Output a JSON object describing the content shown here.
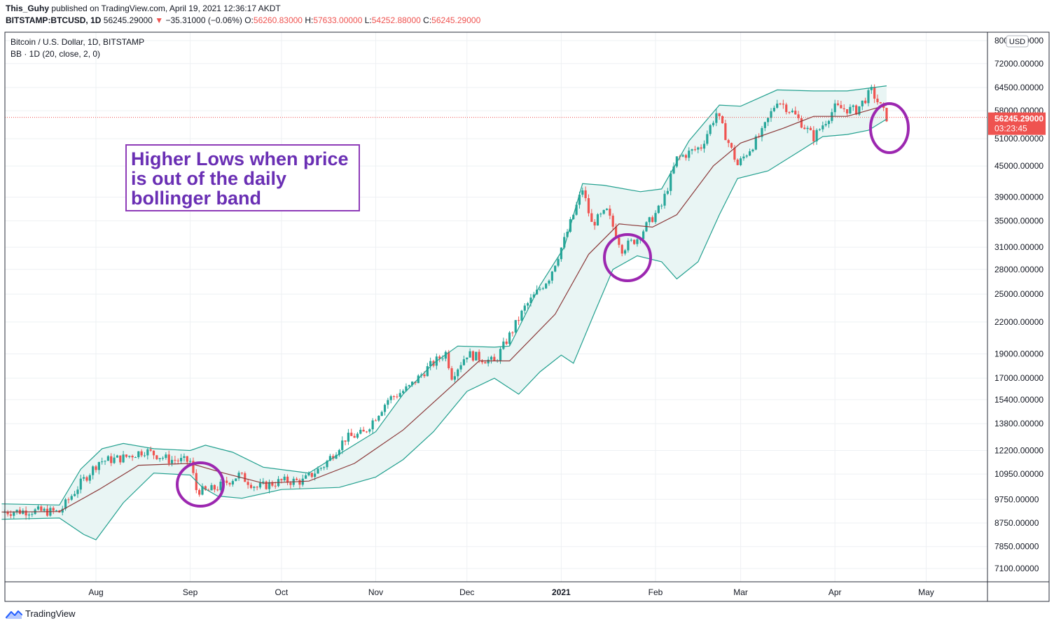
{
  "header": {
    "author": "This_Guhy",
    "published": "published on TradingView.com, April 19, 2021 12:36:17 AKDT",
    "symbol": "BITSTAMP:BTCUSD, 1D",
    "last": "56245.29000",
    "change": "−35.31000 (−0.06%)",
    "o_label": "O:",
    "o": "56260.83000",
    "h_label": "H:",
    "h": "57633.00000",
    "l_label": "L:",
    "l": "54252.88000",
    "c_label": "C:",
    "c": "56245.29000"
  },
  "legend": {
    "title": "Bitcoin / U.S. Dollar, 1D, BITSTAMP",
    "indicator": "BB · 1D (20, close, 2, 0)"
  },
  "currency": "USD",
  "price_label": {
    "price": "56245.29000",
    "countdown": "03:23:45"
  },
  "annotation": {
    "lines": [
      "Higher Lows when price",
      "is out of the daily",
      "bollinger band"
    ]
  },
  "footer": {
    "brand": "TradingView"
  },
  "colors": {
    "up": "#26a69a",
    "down": "#ef5350",
    "band": "#22a08f",
    "basis": "#8b3a3a",
    "fill": "#e9f5f4",
    "circle": "#9c27b0",
    "annotation_text": "#6a2fb4"
  },
  "chart_data": {
    "type": "line",
    "scale": "log",
    "x_labels": [
      "Aug",
      "Sep",
      "Oct",
      "Nov",
      "Dec",
      "2021",
      "Feb",
      "Mar",
      "Apr",
      "May"
    ],
    "y_ticks": [
      "80000.00000",
      "72000.00000",
      "64500.00000",
      "58000.00000",
      "51000.00000",
      "45000.00000",
      "39000.00000",
      "35000.00000",
      "31000.00000",
      "28000.00000",
      "25000.00000",
      "22000.00000",
      "19000.00000",
      "17000.00000",
      "15400.00000",
      "13800.00000",
      "12200.00000",
      "10950.00000",
      "9750.00000",
      "8750.00000",
      "7850.00000",
      "7100.00000"
    ],
    "ylim": [
      6600,
      83000
    ],
    "series": [
      {
        "name": "Close",
        "points": [
          [
            "2020-07-01",
            9200
          ],
          [
            "2020-07-10",
            9250
          ],
          [
            "2020-07-20",
            9200
          ],
          [
            "2020-07-27",
            10500
          ],
          [
            "2020-08-02",
            11600
          ],
          [
            "2020-08-10",
            11800
          ],
          [
            "2020-08-17",
            12200
          ],
          [
            "2020-08-25",
            11700
          ],
          [
            "2020-09-01",
            11600
          ],
          [
            "2020-09-03",
            10200
          ],
          [
            "2020-09-06",
            10100
          ],
          [
            "2020-09-10",
            10300
          ],
          [
            "2020-09-17",
            10900
          ],
          [
            "2020-09-23",
            10300
          ],
          [
            "2020-10-01",
            10600
          ],
          [
            "2020-10-08",
            10600
          ],
          [
            "2020-10-15",
            11400
          ],
          [
            "2020-10-22",
            12900
          ],
          [
            "2020-10-28",
            13200
          ],
          [
            "2020-11-05",
            15400
          ],
          [
            "2020-11-12",
            16300
          ],
          [
            "2020-11-18",
            17800
          ],
          [
            "2020-11-24",
            19100
          ],
          [
            "2020-11-26",
            17200
          ],
          [
            "2020-12-01",
            19000
          ],
          [
            "2020-12-10",
            18300
          ],
          [
            "2020-12-16",
            21200
          ],
          [
            "2020-12-20",
            23500
          ],
          [
            "2020-12-28",
            27000
          ],
          [
            "2021-01-02",
            32000
          ],
          [
            "2021-01-08",
            40500
          ],
          [
            "2021-01-11",
            34500
          ],
          [
            "2021-01-16",
            36500
          ],
          [
            "2021-01-21",
            30800
          ],
          [
            "2021-01-26",
            32300
          ],
          [
            "2021-01-29",
            34200
          ],
          [
            "2021-02-03",
            37500
          ],
          [
            "2021-02-08",
            46500
          ],
          [
            "2021-02-16",
            49200
          ],
          [
            "2021-02-21",
            57400
          ],
          [
            "2021-02-28",
            45200
          ],
          [
            "2021-03-08",
            52400
          ],
          [
            "2021-03-13",
            61000
          ],
          [
            "2021-03-18",
            57600
          ],
          [
            "2021-03-25",
            51300
          ],
          [
            "2021-04-01",
            58800
          ],
          [
            "2021-04-08",
            58100
          ],
          [
            "2021-04-13",
            63500
          ],
          [
            "2021-04-18",
            56245
          ]
        ]
      },
      {
        "name": "Basis",
        "points": [
          [
            "2020-07-01",
            9200
          ],
          [
            "2020-07-20",
            9220
          ],
          [
            "2020-08-02",
            10200
          ],
          [
            "2020-08-15",
            11400
          ],
          [
            "2020-09-01",
            11500
          ],
          [
            "2020-09-12",
            11000
          ],
          [
            "2020-09-25",
            10500
          ],
          [
            "2020-10-10",
            10600
          ],
          [
            "2020-10-25",
            11500
          ],
          [
            "2020-11-10",
            13400
          ],
          [
            "2020-11-25",
            16200
          ],
          [
            "2020-12-05",
            18400
          ],
          [
            "2020-12-15",
            18400
          ],
          [
            "2020-12-30",
            22800
          ],
          [
            "2021-01-10",
            30000
          ],
          [
            "2021-01-20",
            34500
          ],
          [
            "2021-01-31",
            34000
          ],
          [
            "2021-02-08",
            36000
          ],
          [
            "2021-02-20",
            45000
          ],
          [
            "2021-03-01",
            50000
          ],
          [
            "2021-03-15",
            53500
          ],
          [
            "2021-03-25",
            56500
          ],
          [
            "2021-04-05",
            56500
          ],
          [
            "2021-04-18",
            59500
          ]
        ]
      },
      {
        "name": "Upper",
        "points": [
          [
            "2020-07-01",
            9550
          ],
          [
            "2020-07-20",
            9500
          ],
          [
            "2020-07-27",
            11200
          ],
          [
            "2020-08-03",
            12300
          ],
          [
            "2020-08-10",
            12600
          ],
          [
            "2020-08-20",
            12300
          ],
          [
            "2020-09-01",
            12200
          ],
          [
            "2020-09-06",
            12500
          ],
          [
            "2020-09-15",
            12100
          ],
          [
            "2020-09-25",
            11300
          ],
          [
            "2020-10-10",
            11000
          ],
          [
            "2020-10-20",
            12000
          ],
          [
            "2020-11-01",
            13300
          ],
          [
            "2020-11-10",
            15800
          ],
          [
            "2020-11-20",
            18200
          ],
          [
            "2020-11-28",
            19700
          ],
          [
            "2020-12-10",
            19600
          ],
          [
            "2020-12-15",
            19700
          ],
          [
            "2020-12-25",
            26000
          ],
          [
            "2021-01-02",
            31000
          ],
          [
            "2021-01-08",
            41500
          ],
          [
            "2021-01-15",
            41200
          ],
          [
            "2021-01-27",
            40000
          ],
          [
            "2021-02-03",
            40500
          ],
          [
            "2021-02-12",
            50500
          ],
          [
            "2021-02-22",
            59500
          ],
          [
            "2021-03-01",
            59200
          ],
          [
            "2021-03-13",
            63800
          ],
          [
            "2021-03-25",
            63500
          ],
          [
            "2021-04-05",
            63500
          ],
          [
            "2021-04-18",
            65000
          ]
        ]
      },
      {
        "name": "Lower",
        "points": [
          [
            "2020-07-01",
            8900
          ],
          [
            "2020-07-20",
            8950
          ],
          [
            "2020-07-28",
            8300
          ],
          [
            "2020-08-01",
            8100
          ],
          [
            "2020-08-10",
            9600
          ],
          [
            "2020-08-20",
            11000
          ],
          [
            "2020-09-01",
            10900
          ],
          [
            "2020-09-05",
            10300
          ],
          [
            "2020-09-10",
            9900
          ],
          [
            "2020-09-18",
            9800
          ],
          [
            "2020-10-01",
            10200
          ],
          [
            "2020-10-20",
            10300
          ],
          [
            "2020-11-01",
            10800
          ],
          [
            "2020-11-10",
            11700
          ],
          [
            "2020-11-20",
            13300
          ],
          [
            "2020-12-01",
            16000
          ],
          [
            "2020-12-10",
            17000
          ],
          [
            "2020-12-18",
            15800
          ],
          [
            "2020-12-25",
            17500
          ],
          [
            "2021-01-01",
            18900
          ],
          [
            "2021-01-05",
            18200
          ],
          [
            "2021-01-12",
            23000
          ],
          [
            "2021-01-18",
            28000
          ],
          [
            "2021-01-26",
            29800
          ],
          [
            "2021-02-03",
            29000
          ],
          [
            "2021-02-08",
            26800
          ],
          [
            "2021-02-15",
            29000
          ],
          [
            "2021-02-22",
            36000
          ],
          [
            "2021-02-28",
            42500
          ],
          [
            "2021-03-10",
            44000
          ],
          [
            "2021-03-20",
            48000
          ],
          [
            "2021-03-28",
            51500
          ],
          [
            "2021-04-05",
            52000
          ],
          [
            "2021-04-12",
            53000
          ],
          [
            "2021-04-18",
            55800
          ]
        ]
      }
    ]
  }
}
